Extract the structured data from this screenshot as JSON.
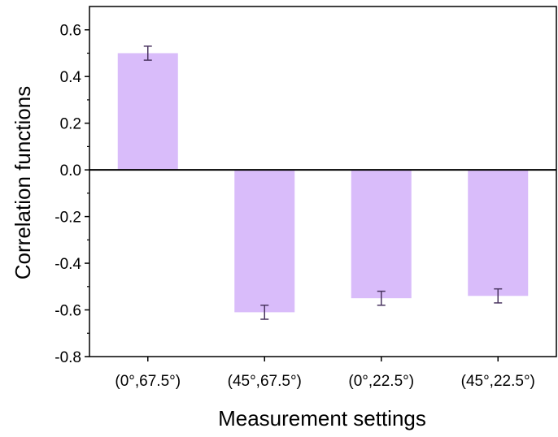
{
  "chart_data": {
    "type": "bar",
    "title": "",
    "xlabel": "Measurement settings",
    "ylabel": "Correlation functions",
    "categories": [
      "(0°,67.5°)",
      "(45°,67.5°)",
      "(0°,22.5°)",
      "(45°,22.5°)"
    ],
    "values": [
      0.5,
      -0.61,
      -0.55,
      -0.54
    ],
    "errors": [
      0.03,
      0.03,
      0.03,
      0.03
    ],
    "ylim": [
      -0.8,
      0.7
    ],
    "yticks": [
      -0.8,
      -0.6,
      -0.4,
      -0.2,
      0.0,
      0.2,
      0.4,
      0.6
    ],
    "ytick_labels": [
      "-0.8",
      "-0.6",
      "-0.4",
      "-0.2",
      "0.0",
      "0.2",
      "0.4",
      "0.6"
    ],
    "bar_color": "#d9bcfa",
    "error_color": "#4a3560",
    "grid": false,
    "legend": "none"
  }
}
